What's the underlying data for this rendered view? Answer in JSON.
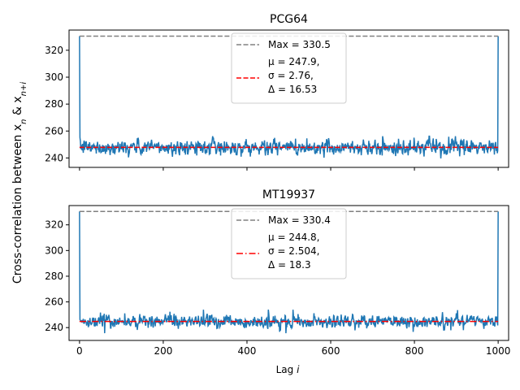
{
  "ylabel_text": "Cross-correlation between x",
  "ylabel_sub1": "n",
  "ylabel_mid": " & x",
  "ylabel_sub2": "n+i",
  "xlabel_text": "Lag ",
  "xlabel_var": "i",
  "chart_data": [
    {
      "type": "line",
      "title": "PCG64",
      "xlim": [
        -25,
        1025
      ],
      "ylim": [
        233,
        335
      ],
      "yticks": [
        240,
        260,
        280,
        300,
        320
      ],
      "xticks": [
        0,
        200,
        400,
        600,
        800,
        1000
      ],
      "show_xticklabels": false,
      "grid": false,
      "legend_position": "top-center",
      "series": {
        "x_start": 0,
        "x_end": 1000,
        "max": 330.5,
        "mean": 247.9,
        "std": 2.76,
        "range": 16.53,
        "color": "#1f77b4"
      },
      "max_line": {
        "label": "Max = 330.5",
        "value": 330.5,
        "color": "#808080",
        "style": "dashed"
      },
      "mean_line": {
        "value": 247.9,
        "color": "#ff0000",
        "style": "dashed"
      },
      "stats_lines": [
        "μ = 247.9,",
        "σ = 2.76,",
        "Δ = 16.53"
      ]
    },
    {
      "type": "line",
      "title": "MT19937",
      "xlim": [
        -25,
        1025
      ],
      "ylim": [
        230,
        335
      ],
      "yticks": [
        240,
        260,
        280,
        300,
        320
      ],
      "xticks": [
        0,
        200,
        400,
        600,
        800,
        1000
      ],
      "show_xticklabels": true,
      "grid": false,
      "legend_position": "top-center",
      "series": {
        "x_start": 0,
        "x_end": 1000,
        "max": 330.4,
        "mean": 244.8,
        "std": 2.504,
        "range": 18.3,
        "color": "#1f77b4"
      },
      "max_line": {
        "label": "Max = 330.4",
        "value": 330.4,
        "color": "#808080",
        "style": "dashed"
      },
      "mean_line": {
        "value": 244.8,
        "color": "#ff0000",
        "style": "dashdot"
      },
      "stats_lines": [
        "μ = 244.8,",
        "σ = 2.504,",
        "Δ = 18.3"
      ]
    }
  ]
}
